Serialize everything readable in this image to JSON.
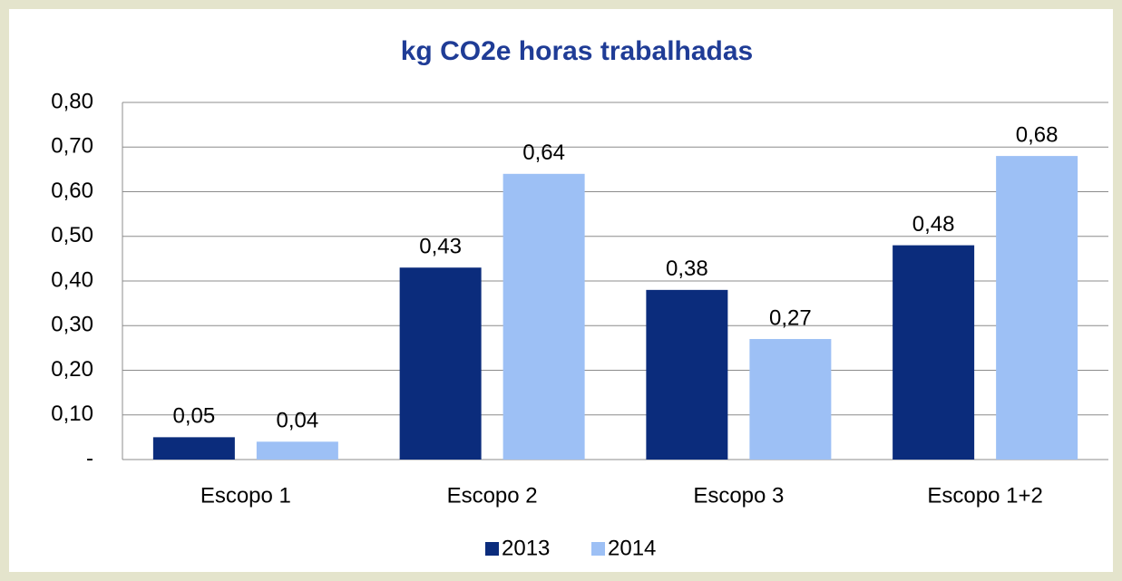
{
  "chart_data": {
    "type": "bar",
    "title": "kg CO2e horas trabalhadas",
    "categories": [
      "Escopo 1",
      "Escopo 2",
      "Escopo 3",
      "Escopo 1+2"
    ],
    "series": [
      {
        "name": "2013",
        "color": "#0b2c7c",
        "values": [
          0.05,
          0.43,
          0.38,
          0.48
        ],
        "value_labels": [
          "0,05",
          "0,43",
          "0,38",
          "0,48"
        ]
      },
      {
        "name": "2014",
        "color": "#9dc0f5",
        "values": [
          0.04,
          0.64,
          0.27,
          0.68
        ],
        "value_labels": [
          "0,04",
          "0,64",
          "0,27",
          "0,68"
        ]
      }
    ],
    "ylim": [
      0,
      0.8
    ],
    "yticks": [
      {
        "value": 0,
        "label": "-"
      },
      {
        "value": 0.1,
        "label": "0,10"
      },
      {
        "value": 0.2,
        "label": "0,20"
      },
      {
        "value": 0.3,
        "label": "0,30"
      },
      {
        "value": 0.4,
        "label": "0,40"
      },
      {
        "value": 0.5,
        "label": "0,50"
      },
      {
        "value": 0.6,
        "label": "0,60"
      },
      {
        "value": 0.7,
        "label": "0,70"
      },
      {
        "value": 0.8,
        "label": "0,80"
      }
    ],
    "grid": true,
    "legend": "bottom"
  }
}
